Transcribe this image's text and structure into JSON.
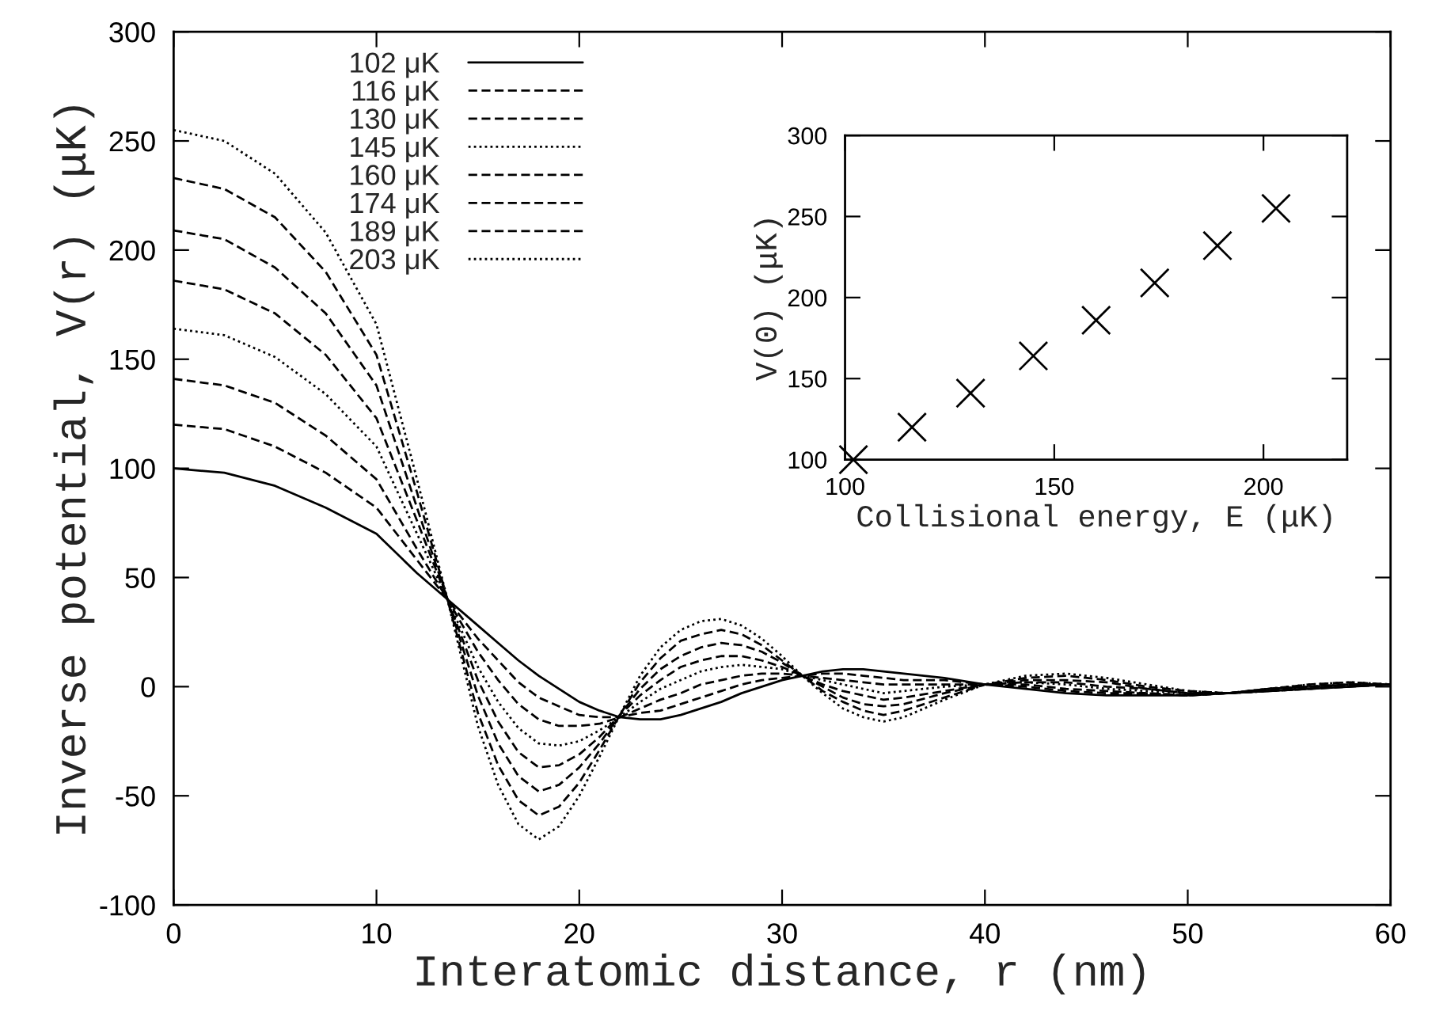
{
  "chart_data": [
    {
      "type": "line",
      "xlabel": "Interatomic distance, r (nm)",
      "ylabel": "Inverse potential, V(r) (μK)",
      "x": [
        0,
        2.5,
        5,
        7.5,
        10,
        12,
        13.5,
        15,
        16,
        17,
        18,
        19,
        20,
        21,
        22,
        23,
        24,
        25,
        26,
        27,
        28,
        29,
        30,
        31,
        32,
        33,
        34,
        35,
        36,
        38,
        40,
        42,
        44,
        46,
        48,
        50,
        52,
        54,
        56,
        58,
        60
      ],
      "xlim": [
        0,
        60
      ],
      "xticks": [
        0,
        10,
        20,
        30,
        40,
        50,
        60
      ],
      "ylim": [
        -100,
        300
      ],
      "yticks": [
        -100,
        -50,
        0,
        50,
        100,
        150,
        200,
        250,
        300
      ],
      "grid": false,
      "legend": "top",
      "marker": "none",
      "series": [
        {
          "name": "102 μK",
          "color": "#000000",
          "line_style": "solid",
          "values": [
            100,
            98,
            92,
            82,
            70,
            52,
            40,
            28,
            20,
            12,
            5,
            -1,
            -7,
            -11,
            -14,
            -15,
            -15,
            -13,
            -10,
            -7,
            -3,
            0,
            3,
            5,
            7,
            8,
            8,
            7,
            6,
            4,
            1,
            -1,
            -3,
            -4,
            -4,
            -4,
            -3,
            -2,
            -1,
            0,
            1
          ]
        },
        {
          "name": "116 μK",
          "color": "#000000",
          "line_style": "dashed",
          "values": [
            120,
            118,
            110,
            98,
            82,
            58,
            40,
            22,
            12,
            2,
            -5,
            -9,
            -13,
            -14,
            -14,
            -12,
            -11,
            -8,
            -5,
            -2,
            1,
            3,
            4,
            5,
            6,
            6,
            5,
            4,
            3,
            3,
            1,
            0,
            -2,
            -3,
            -3,
            -4,
            -3,
            -2,
            -1,
            0,
            1
          ]
        },
        {
          "name": "130 μK",
          "color": "#000000",
          "line_style": "dashed",
          "values": [
            141,
            138,
            130,
            115,
            95,
            63,
            40,
            16,
            3,
            -8,
            -15,
            -18,
            -18,
            -17,
            -14,
            -10,
            -6,
            -3,
            1,
            3,
            5,
            6,
            6,
            5,
            4,
            3,
            2,
            1,
            1,
            1,
            1,
            1,
            -1,
            -2,
            -3,
            -4,
            -3,
            -2,
            -1,
            1,
            1
          ]
        },
        {
          "name": "145 μK",
          "color": "#000000",
          "line_style": "dotted",
          "values": [
            164,
            161,
            151,
            134,
            110,
            70,
            40,
            9,
            -7,
            -19,
            -26,
            -27,
            -25,
            -20,
            -14,
            -7,
            -1,
            3,
            7,
            9,
            10,
            9,
            8,
            5,
            3,
            1,
            -1,
            -3,
            -2,
            0,
            1,
            2,
            1,
            -1,
            -2,
            -3,
            -3,
            -2,
            0,
            1,
            1
          ]
        },
        {
          "name": "160 μK",
          "color": "#000000",
          "line_style": "dashed",
          "values": [
            186,
            182,
            171,
            152,
            123,
            76,
            40,
            3,
            -16,
            -30,
            -37,
            -36,
            -31,
            -23,
            -13,
            -4,
            3,
            9,
            12,
            14,
            14,
            12,
            9,
            5,
            1,
            -2,
            -4,
            -6,
            -5,
            -2,
            1,
            2,
            2,
            0,
            -1,
            -3,
            -3,
            -1,
            0,
            1,
            1
          ]
        },
        {
          "name": "174 μK",
          "color": "#000000",
          "line_style": "dashed",
          "values": [
            209,
            205,
            192,
            171,
            138,
            82,
            40,
            -4,
            -26,
            -41,
            -48,
            -45,
            -37,
            -26,
            -13,
            -1,
            8,
            14,
            18,
            20,
            19,
            16,
            11,
            5,
            0,
            -5,
            -8,
            -9,
            -8,
            -3,
            1,
            3,
            3,
            2,
            -1,
            -3,
            -3,
            -1,
            0,
            1,
            1
          ]
        },
        {
          "name": "189 μK",
          "color": "#000000",
          "line_style": "dashed",
          "values": [
            233,
            228,
            215,
            190,
            152,
            89,
            40,
            -12,
            -36,
            -52,
            -59,
            -55,
            -44,
            -29,
            -13,
            2,
            13,
            21,
            24,
            26,
            24,
            19,
            12,
            5,
            -2,
            -7,
            -11,
            -13,
            -11,
            -5,
            1,
            4,
            5,
            3,
            0,
            -2,
            -3,
            -1,
            1,
            2,
            1
          ]
        },
        {
          "name": "203 μK",
          "color": "#000000",
          "line_style": "dotted",
          "values": [
            255,
            250,
            235,
            208,
            166,
            95,
            40,
            -18,
            -45,
            -63,
            -70,
            -64,
            -50,
            -32,
            -13,
            5,
            18,
            26,
            30,
            31,
            28,
            22,
            14,
            5,
            -3,
            -10,
            -14,
            -16,
            -14,
            -6,
            1,
            5,
            6,
            4,
            1,
            -2,
            -3,
            -1,
            1,
            2,
            1
          ]
        }
      ]
    },
    {
      "type": "scatter",
      "xlabel": "Collisional energy, E (μK)",
      "ylabel": "V(0) (μK)",
      "x": [
        102,
        116,
        130,
        145,
        160,
        174,
        189,
        203
      ],
      "xlim": [
        100,
        220
      ],
      "xticks": [
        100,
        150,
        200
      ],
      "ylim": [
        100,
        300
      ],
      "yticks": [
        100,
        150,
        200,
        250,
        300
      ],
      "grid": false,
      "marker": "cross",
      "series": [
        {
          "color": "#000000",
          "values": [
            100,
            120,
            141,
            164,
            186,
            209,
            232,
            255
          ]
        }
      ]
    }
  ]
}
